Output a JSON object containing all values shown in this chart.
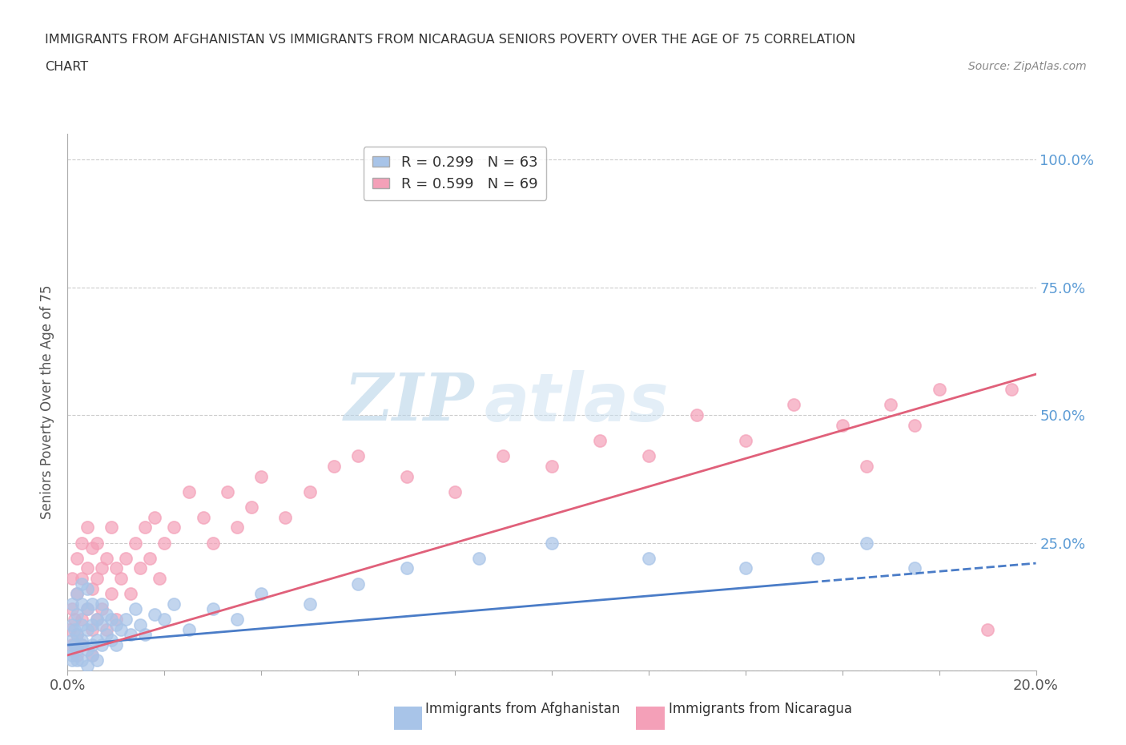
{
  "title_line1": "IMMIGRANTS FROM AFGHANISTAN VS IMMIGRANTS FROM NICARAGUA SENIORS POVERTY OVER THE AGE OF 75 CORRELATION",
  "title_line2": "CHART",
  "source": "Source: ZipAtlas.com",
  "ylabel": "Seniors Poverty Over the Age of 75",
  "xlim": [
    0.0,
    0.2
  ],
  "ylim": [
    0.0,
    1.05
  ],
  "afghanistan_color": "#a8c4e8",
  "nicaragua_color": "#f4a0b8",
  "afghanistan_line_color": "#4a7cc7",
  "nicaragua_line_color": "#e0607a",
  "afghanistan_R": 0.299,
  "afghanistan_N": 63,
  "nicaragua_R": 0.599,
  "nicaragua_N": 69,
  "watermark_zip": "ZIP",
  "watermark_atlas": "atlas",
  "background_color": "#ffffff",
  "grid_color": "#cccccc",
  "right_tick_color": "#5b9bd5",
  "afghanistan_scatter_x": [
    0.0005,
    0.001,
    0.001,
    0.001,
    0.001,
    0.001,
    0.0015,
    0.0015,
    0.002,
    0.002,
    0.002,
    0.002,
    0.002,
    0.003,
    0.003,
    0.003,
    0.003,
    0.003,
    0.003,
    0.004,
    0.004,
    0.004,
    0.004,
    0.004,
    0.005,
    0.005,
    0.005,
    0.005,
    0.006,
    0.006,
    0.006,
    0.007,
    0.007,
    0.007,
    0.008,
    0.008,
    0.009,
    0.009,
    0.01,
    0.01,
    0.011,
    0.012,
    0.013,
    0.014,
    0.015,
    0.016,
    0.018,
    0.02,
    0.022,
    0.025,
    0.03,
    0.035,
    0.04,
    0.05,
    0.06,
    0.07,
    0.085,
    0.1,
    0.12,
    0.14,
    0.155,
    0.165,
    0.175
  ],
  "afghanistan_scatter_y": [
    0.04,
    0.03,
    0.06,
    0.09,
    0.13,
    0.02,
    0.05,
    0.08,
    0.04,
    0.07,
    0.11,
    0.15,
    0.02,
    0.05,
    0.09,
    0.13,
    0.17,
    0.02,
    0.06,
    0.04,
    0.08,
    0.12,
    0.16,
    0.01,
    0.05,
    0.09,
    0.13,
    0.03,
    0.06,
    0.1,
    0.02,
    0.05,
    0.09,
    0.13,
    0.07,
    0.11,
    0.06,
    0.1,
    0.05,
    0.09,
    0.08,
    0.1,
    0.07,
    0.12,
    0.09,
    0.07,
    0.11,
    0.1,
    0.13,
    0.08,
    0.12,
    0.1,
    0.15,
    0.13,
    0.17,
    0.2,
    0.22,
    0.25,
    0.22,
    0.2,
    0.22,
    0.25,
    0.2
  ],
  "nicaragua_scatter_x": [
    0.0005,
    0.001,
    0.001,
    0.001,
    0.0015,
    0.002,
    0.002,
    0.002,
    0.002,
    0.003,
    0.003,
    0.003,
    0.003,
    0.004,
    0.004,
    0.004,
    0.005,
    0.005,
    0.005,
    0.005,
    0.006,
    0.006,
    0.006,
    0.007,
    0.007,
    0.008,
    0.008,
    0.009,
    0.009,
    0.01,
    0.01,
    0.011,
    0.012,
    0.013,
    0.014,
    0.015,
    0.016,
    0.017,
    0.018,
    0.019,
    0.02,
    0.022,
    0.025,
    0.028,
    0.03,
    0.033,
    0.035,
    0.038,
    0.04,
    0.045,
    0.05,
    0.055,
    0.06,
    0.07,
    0.08,
    0.09,
    0.1,
    0.11,
    0.12,
    0.13,
    0.14,
    0.15,
    0.16,
    0.165,
    0.17,
    0.175,
    0.18,
    0.19,
    0.195
  ],
  "nicaragua_scatter_y": [
    0.08,
    0.05,
    0.12,
    0.18,
    0.1,
    0.07,
    0.15,
    0.22,
    0.03,
    0.1,
    0.18,
    0.25,
    0.05,
    0.12,
    0.2,
    0.28,
    0.08,
    0.16,
    0.24,
    0.03,
    0.1,
    0.18,
    0.25,
    0.12,
    0.2,
    0.08,
    0.22,
    0.15,
    0.28,
    0.1,
    0.2,
    0.18,
    0.22,
    0.15,
    0.25,
    0.2,
    0.28,
    0.22,
    0.3,
    0.18,
    0.25,
    0.28,
    0.35,
    0.3,
    0.25,
    0.35,
    0.28,
    0.32,
    0.38,
    0.3,
    0.35,
    0.4,
    0.42,
    0.38,
    0.35,
    0.42,
    0.4,
    0.45,
    0.42,
    0.5,
    0.45,
    0.52,
    0.48,
    0.4,
    0.52,
    0.48,
    0.55,
    0.08,
    0.55
  ]
}
